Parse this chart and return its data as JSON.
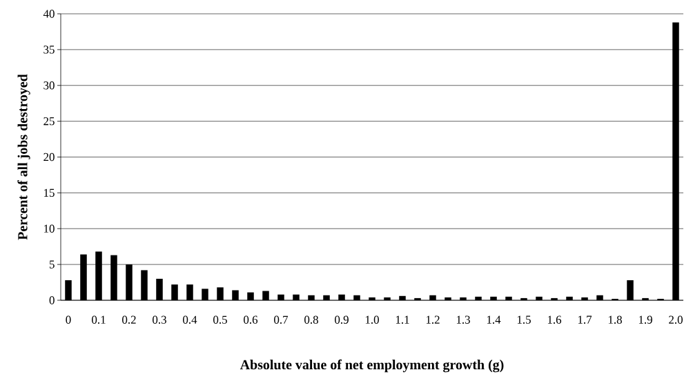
{
  "chart_data": {
    "type": "bar",
    "xlabel": "Absolute value of net employment growth (g)",
    "ylabel": "Percent of all jobs destroyed",
    "categories": [
      "0",
      null,
      "0.1",
      null,
      "0.2",
      null,
      "0.3",
      null,
      "0.4",
      null,
      "0.5",
      null,
      "0.6",
      null,
      "0.7",
      null,
      "0.8",
      null,
      "0.9",
      null,
      "1.0",
      null,
      "1.1",
      null,
      "1.2",
      null,
      "1.3",
      null,
      "1.4",
      null,
      "1.5",
      null,
      "1.6",
      null,
      "1.7",
      null,
      "1.8",
      null,
      "1.9",
      null,
      "2.0"
    ],
    "values": [
      2.8,
      6.4,
      6.8,
      6.3,
      5.0,
      4.2,
      3.0,
      2.2,
      2.2,
      1.6,
      1.8,
      1.4,
      1.1,
      1.3,
      0.8,
      0.8,
      0.7,
      0.7,
      0.8,
      0.7,
      0.4,
      0.4,
      0.6,
      0.3,
      0.7,
      0.4,
      0.4,
      0.5,
      0.5,
      0.5,
      0.3,
      0.5,
      0.3,
      0.5,
      0.4,
      0.7,
      0.2,
      2.8,
      0.3,
      0.2,
      38.8
    ],
    "color": "#000000",
    "ylim": [
      0,
      40
    ],
    "yticks": [
      0,
      5,
      10,
      15,
      20,
      25,
      30,
      35,
      40
    ],
    "grid": "y"
  }
}
